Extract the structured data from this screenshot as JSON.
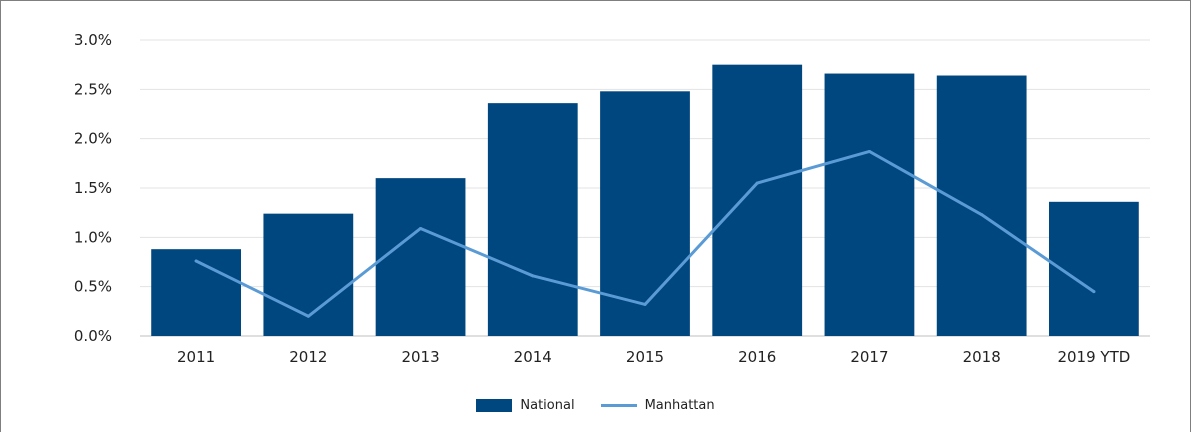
{
  "chart_data": {
    "type": "bar",
    "title": "",
    "xlabel": "",
    "ylabel": "",
    "categories": [
      "2011",
      "2012",
      "2013",
      "2014",
      "2015",
      "2016",
      "2017",
      "2018",
      "2019 YTD"
    ],
    "series": [
      {
        "name": "National",
        "type": "bar",
        "color": "#00467f",
        "values": [
          0.88,
          1.24,
          1.6,
          2.36,
          2.48,
          2.75,
          2.66,
          2.64,
          1.36
        ]
      },
      {
        "name": "Manhattan",
        "type": "line",
        "color": "#5b9bd5",
        "values": [
          0.76,
          0.2,
          1.09,
          0.61,
          0.32,
          1.55,
          1.87,
          1.23,
          0.45
        ]
      }
    ],
    "ylim": [
      0,
      3.0
    ],
    "yticks": [
      0,
      0.5,
      1.0,
      1.5,
      2.0,
      2.5,
      3.0
    ],
    "ytick_labels": [
      "0.0%",
      "0.5%",
      "1.0%",
      "1.5%",
      "2.0%",
      "2.5%",
      "3.0%"
    ],
    "grid": true,
    "legend_position": "bottom"
  }
}
